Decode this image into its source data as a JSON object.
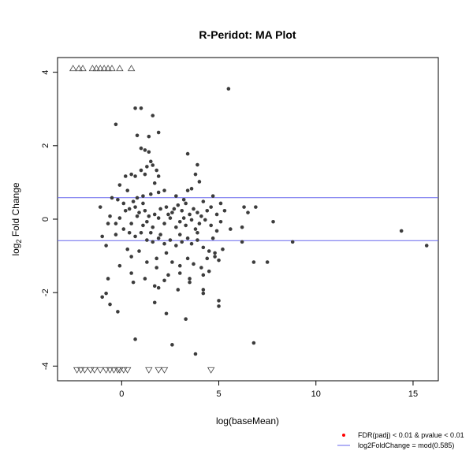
{
  "chart_data": {
    "type": "scatter",
    "title": "R-Peridot: MA Plot",
    "xlabel": "log(baseMean)",
    "ylabel_main": "log",
    "ylabel_sub": "2",
    "ylabel_rest": " Fold Change",
    "xlim": [
      -3.3,
      16.3
    ],
    "ylim": [
      -4.4,
      4.4
    ],
    "x_ticks": [
      0,
      5,
      10,
      15
    ],
    "y_ticks": [
      -4,
      -2,
      0,
      2,
      4
    ],
    "x_tick_labels": [
      "0",
      "5",
      "10",
      "15"
    ],
    "y_tick_labels": [
      "-4",
      "-2",
      "0",
      "2",
      "4"
    ],
    "threshold_lines": [
      0.585,
      -0.585
    ],
    "colors": {
      "points": "#3c3c3c",
      "threshold": "#6666ee",
      "triangles": "#444444",
      "significant": "#ff0000"
    },
    "legend": {
      "placement": "bottom-right",
      "entries": [
        {
          "label": "FDR(padj) < 0.01 & pvalue < 0.01",
          "marker": "dot",
          "color": "#ff0000"
        },
        {
          "label": "log2FoldChange = mod(0.585)",
          "marker": "line",
          "color": "#6666ee"
        }
      ]
    },
    "series": [
      {
        "values": [
          [
            0.7,
            3.02
          ],
          [
            1.0,
            3.02
          ],
          [
            1.6,
            2.82
          ],
          [
            1.9,
            2.36
          ],
          [
            1.4,
            2.25
          ],
          [
            0.8,
            2.28
          ],
          [
            -0.3,
            2.58
          ],
          [
            5.5,
            3.55
          ],
          [
            1.0,
            1.93
          ],
          [
            1.2,
            1.88
          ],
          [
            1.4,
            1.83
          ],
          [
            1.5,
            1.57
          ],
          [
            1.3,
            1.43
          ],
          [
            1.6,
            1.47
          ],
          [
            1.8,
            1.33
          ],
          [
            3.4,
            1.78
          ],
          [
            3.9,
            1.48
          ],
          [
            0.2,
            1.17
          ],
          [
            0.5,
            1.22
          ],
          [
            0.7,
            1.17
          ],
          [
            1.0,
            1.33
          ],
          [
            1.2,
            1.22
          ],
          [
            1.7,
            0.98
          ],
          [
            1.9,
            1.17
          ],
          [
            3.8,
            1.22
          ],
          [
            4.0,
            1.02
          ],
          [
            -0.1,
            0.93
          ],
          [
            0.3,
            0.78
          ],
          [
            0.6,
            0.48
          ],
          [
            0.8,
            0.58
          ],
          [
            1.1,
            0.63
          ],
          [
            1.5,
            0.68
          ],
          [
            1.9,
            0.73
          ],
          [
            2.2,
            0.78
          ],
          [
            2.8,
            0.63
          ],
          [
            3.2,
            0.53
          ],
          [
            3.4,
            0.78
          ],
          [
            3.6,
            0.83
          ],
          [
            4.2,
            0.48
          ],
          [
            4.7,
            0.63
          ],
          [
            5.1,
            0.43
          ],
          [
            -0.5,
            0.58
          ],
          [
            -0.2,
            0.53
          ],
          [
            0.1,
            0.43
          ],
          [
            0.4,
            0.28
          ],
          [
            0.7,
            0.33
          ],
          [
            0.9,
            0.18
          ],
          [
            1.2,
            0.23
          ],
          [
            1.4,
            0.08
          ],
          [
            1.7,
            0.13
          ],
          [
            2.0,
            0.28
          ],
          [
            2.3,
            0.33
          ],
          [
            2.6,
            0.18
          ],
          [
            2.9,
            0.38
          ],
          [
            3.1,
            0.23
          ],
          [
            3.3,
            0.43
          ],
          [
            3.5,
            0.13
          ],
          [
            3.7,
            0.28
          ],
          [
            3.9,
            0.18
          ],
          [
            4.1,
            0.08
          ],
          [
            4.4,
            0.23
          ],
          [
            4.6,
            0.33
          ],
          [
            4.9,
            0.13
          ],
          [
            5.3,
            0.23
          ],
          [
            6.3,
            0.33
          ],
          [
            6.5,
            0.18
          ],
          [
            6.9,
            0.33
          ],
          [
            -1.1,
            0.33
          ],
          [
            -0.6,
            0.08
          ],
          [
            -0.3,
            -0.12
          ],
          [
            -0.1,
            0.03
          ],
          [
            0.2,
            0.23
          ],
          [
            0.5,
            -0.12
          ],
          [
            0.8,
            0.08
          ],
          [
            1.1,
            -0.17
          ],
          [
            1.3,
            -0.07
          ],
          [
            1.6,
            -0.22
          ],
          [
            1.9,
            0.03
          ],
          [
            2.2,
            -0.12
          ],
          [
            2.5,
            0.03
          ],
          [
            2.8,
            -0.22
          ],
          [
            3.0,
            -0.07
          ],
          [
            3.3,
            -0.17
          ],
          [
            3.6,
            -0.02
          ],
          [
            3.8,
            -0.27
          ],
          [
            4.0,
            -0.12
          ],
          [
            4.3,
            -0.02
          ],
          [
            4.6,
            -0.17
          ],
          [
            4.9,
            -0.32
          ],
          [
            5.1,
            -0.07
          ],
          [
            5.6,
            -0.27
          ],
          [
            6.2,
            -0.22
          ],
          [
            7.8,
            -0.07
          ],
          [
            14.4,
            -0.32
          ],
          [
            -0.7,
            -0.12
          ],
          [
            -0.3,
            -0.42
          ],
          [
            0.1,
            -0.27
          ],
          [
            0.4,
            -0.37
          ],
          [
            0.7,
            -0.47
          ],
          [
            1.0,
            -0.37
          ],
          [
            1.3,
            -0.57
          ],
          [
            1.6,
            -0.62
          ],
          [
            1.9,
            -0.52
          ],
          [
            2.2,
            -0.67
          ],
          [
            2.5,
            -0.57
          ],
          [
            2.8,
            -0.72
          ],
          [
            3.1,
            -0.62
          ],
          [
            3.4,
            -0.52
          ],
          [
            3.6,
            -0.67
          ],
          [
            3.9,
            -0.57
          ],
          [
            4.2,
            -0.77
          ],
          [
            4.5,
            -0.87
          ],
          [
            4.8,
            -0.92
          ],
          [
            5.2,
            -0.82
          ],
          [
            5.0,
            -1.12
          ],
          [
            6.2,
            -0.62
          ],
          [
            8.8,
            -0.62
          ],
          [
            15.7,
            -0.72
          ],
          [
            -0.8,
            -0.72
          ],
          [
            -1.0,
            -0.47
          ],
          [
            0.5,
            -1.02
          ],
          [
            0.9,
            -0.87
          ],
          [
            1.3,
            -1.17
          ],
          [
            1.8,
            -1.07
          ],
          [
            2.3,
            -0.92
          ],
          [
            2.6,
            -1.17
          ],
          [
            3.0,
            -1.27
          ],
          [
            3.4,
            -1.07
          ],
          [
            3.7,
            -1.22
          ],
          [
            4.1,
            -1.32
          ],
          [
            4.4,
            -1.07
          ],
          [
            4.8,
            -1.02
          ],
          [
            6.8,
            -1.17
          ],
          [
            7.5,
            -1.17
          ],
          [
            -0.1,
            -1.27
          ],
          [
            0.5,
            -1.47
          ],
          [
            1.2,
            -1.62
          ],
          [
            1.8,
            -1.32
          ],
          [
            2.4,
            -1.52
          ],
          [
            3.0,
            -1.47
          ],
          [
            3.5,
            -1.62
          ],
          [
            4.2,
            -1.52
          ],
          [
            4.5,
            -1.42
          ],
          [
            0.6,
            -1.72
          ],
          [
            1.7,
            -1.82
          ],
          [
            2.2,
            -1.67
          ],
          [
            2.9,
            -1.92
          ],
          [
            3.5,
            -1.72
          ],
          [
            4.2,
            -1.92
          ],
          [
            -0.7,
            -1.62
          ],
          [
            -1.0,
            -2.12
          ],
          [
            -0.8,
            -2.02
          ],
          [
            -0.6,
            -2.32
          ],
          [
            -0.2,
            -2.52
          ],
          [
            1.7,
            -2.27
          ],
          [
            2.3,
            -2.57
          ],
          [
            3.3,
            -2.72
          ],
          [
            4.2,
            -2.02
          ],
          [
            5.0,
            -2.22
          ],
          [
            5.0,
            -2.37
          ],
          [
            0.7,
            -3.27
          ],
          [
            2.6,
            -3.42
          ],
          [
            3.8,
            -3.67
          ],
          [
            6.8,
            -3.37
          ],
          [
            1.9,
            -1.87
          ],
          [
            3.2,
            0.03
          ],
          [
            2.0,
            -0.42
          ],
          [
            1.1,
            0.43
          ],
          [
            2.7,
            0.28
          ],
          [
            3.9,
            -0.37
          ],
          [
            1.5,
            -0.37
          ],
          [
            2.4,
            0.13
          ],
          [
            3.0,
            -0.42
          ],
          [
            0.3,
            -0.82
          ],
          [
            4.7,
            -0.52
          ]
        ]
      },
      {
        "marker": "triangle-up",
        "values": [
          [
            -2.5,
            4.1
          ],
          [
            -2.2,
            4.1
          ],
          [
            -2.0,
            4.1
          ],
          [
            -1.5,
            4.1
          ],
          [
            -1.3,
            4.1
          ],
          [
            -1.1,
            4.1
          ],
          [
            -0.9,
            4.1
          ],
          [
            -0.7,
            4.1
          ],
          [
            -0.5,
            4.1
          ],
          [
            -0.1,
            4.1
          ],
          [
            0.5,
            4.1
          ]
        ]
      },
      {
        "marker": "triangle-down",
        "values": [
          [
            -2.3,
            -4.1
          ],
          [
            -2.1,
            -4.1
          ],
          [
            -1.9,
            -4.1
          ],
          [
            -1.6,
            -4.1
          ],
          [
            -1.4,
            -4.1
          ],
          [
            -1.1,
            -4.1
          ],
          [
            -0.8,
            -4.1
          ],
          [
            -0.6,
            -4.1
          ],
          [
            -0.4,
            -4.1
          ],
          [
            -0.2,
            -4.1
          ],
          [
            -0.1,
            -4.1
          ],
          [
            0.1,
            -4.1
          ],
          [
            0.3,
            -4.1
          ],
          [
            1.4,
            -4.1
          ],
          [
            1.9,
            -4.1
          ],
          [
            2.2,
            -4.1
          ],
          [
            4.6,
            -4.1
          ]
        ]
      }
    ]
  }
}
